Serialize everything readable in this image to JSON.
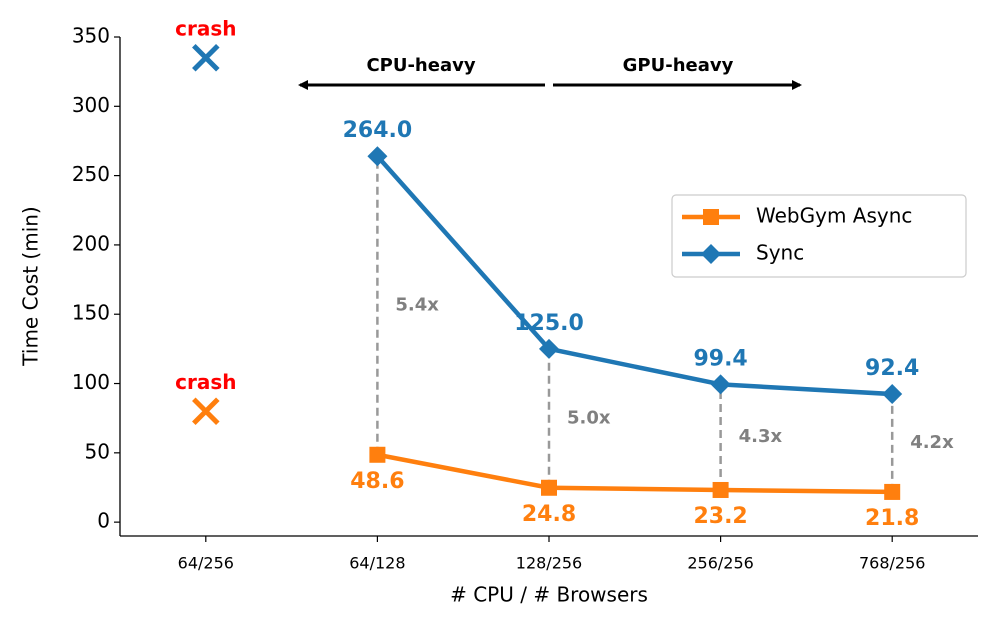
{
  "chart_data": {
    "type": "line",
    "y_label": "Time Cost (min)",
    "x_label": "# CPU / # Browsers",
    "categories": [
      "64/256",
      "64/128",
      "128/256",
      "256/256",
      "768/256"
    ],
    "ylim": [
      -10,
      350
    ],
    "yticks": [
      0,
      50,
      100,
      150,
      200,
      250,
      300,
      350
    ],
    "series": [
      {
        "name": "WebGym Async",
        "color": "#ff7f0e",
        "marker": "square",
        "values": [
          null,
          48.6,
          24.8,
          23.2,
          21.8
        ],
        "crash": {
          "label": "crash",
          "value": 80
        }
      },
      {
        "name": "Sync",
        "color": "#1f77b4",
        "marker": "diamond",
        "values": [
          null,
          264,
          125,
          99.4,
          92.4
        ],
        "value_labels": [
          null,
          "264.0",
          "125.0",
          "99.4",
          "92.4"
        ],
        "crash": {
          "label": "crash",
          "value": 335
        }
      }
    ],
    "ratio_labels": [
      null,
      "5.4x",
      "5.0x",
      "4.3x",
      "4.2x"
    ],
    "annotations": {
      "left": "CPU-heavy",
      "right": "GPU-heavy"
    },
    "legend": "upper right"
  }
}
